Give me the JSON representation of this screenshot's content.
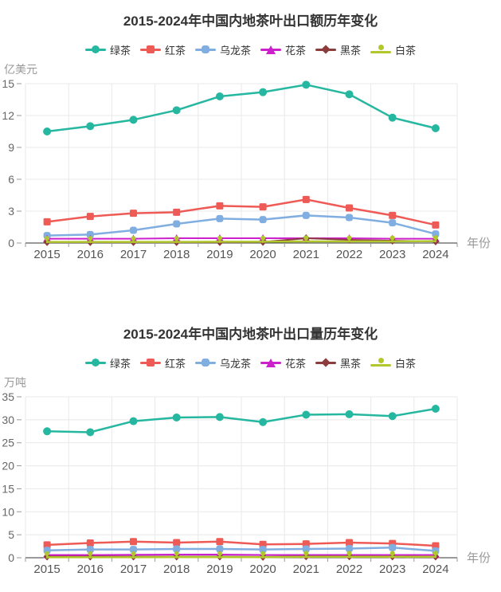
{
  "colors": {
    "title": "#333333",
    "y_tick_label": "#666666",
    "x_tick_label": "#555555",
    "axis_name": "#999999",
    "grid": "#e8e8e8",
    "axis_line": "#333333",
    "tick": "#999999"
  },
  "chart_data": [
    {
      "type": "line",
      "title": "2015-2024年中国内地茶叶出口额历年变化",
      "y_axis_name": "亿美元",
      "x_axis_name": "年份",
      "ylim": [
        0,
        15
      ],
      "y_ticks": [
        0,
        3,
        6,
        9,
        12,
        15
      ],
      "grid": true,
      "legend_position": "top",
      "categories": [
        "2015",
        "2016",
        "2017",
        "2018",
        "2019",
        "2020",
        "2021",
        "2022",
        "2023",
        "2024"
      ],
      "series": [
        {
          "name": "绿茶",
          "color": "#26b7a0",
          "symbol": "circle",
          "values": [
            10.5,
            11.0,
            11.6,
            12.5,
            13.8,
            14.2,
            14.9,
            14.0,
            11.8,
            10.8
          ]
        },
        {
          "name": "红茶",
          "color": "#ee5a55",
          "symbol": "square",
          "values": [
            2.0,
            2.5,
            2.8,
            2.9,
            3.5,
            3.4,
            4.1,
            3.3,
            2.6,
            1.7
          ]
        },
        {
          "name": "乌龙茶",
          "color": "#80aee1",
          "symbol": "rounded-square",
          "values": [
            0.7,
            0.8,
            1.2,
            1.8,
            2.3,
            2.2,
            2.6,
            2.4,
            1.9,
            0.85
          ]
        },
        {
          "name": "花茶",
          "color": "#cc20cc",
          "symbol": "triangle",
          "values": [
            0.4,
            0.4,
            0.4,
            0.45,
            0.45,
            0.45,
            0.45,
            0.45,
            0.4,
            0.4
          ]
        },
        {
          "name": "黑茶",
          "color": "#8c3c3c",
          "symbol": "diamond",
          "values": [
            0.08,
            0.08,
            0.08,
            0.08,
            0.08,
            0.1,
            0.45,
            0.3,
            0.22,
            0.15
          ]
        },
        {
          "name": "白茶",
          "color": "#b2c72e",
          "symbol": "pin",
          "values": [
            0.1,
            0.1,
            0.1,
            0.1,
            0.12,
            0.12,
            0.15,
            0.15,
            0.15,
            0.18
          ]
        }
      ]
    },
    {
      "type": "line",
      "title": "2015-2024年中国内地茶叶出口量历年变化",
      "y_axis_name": "万吨",
      "x_axis_name": "年份",
      "ylim": [
        0,
        35
      ],
      "y_ticks": [
        0,
        5,
        10,
        15,
        20,
        25,
        30,
        35
      ],
      "grid": true,
      "legend_position": "top",
      "categories": [
        "2015",
        "2016",
        "2017",
        "2018",
        "2019",
        "2020",
        "2021",
        "2022",
        "2023",
        "2024"
      ],
      "series": [
        {
          "name": "绿茶",
          "color": "#26b7a0",
          "symbol": "circle",
          "values": [
            27.5,
            27.3,
            29.7,
            30.5,
            30.6,
            29.5,
            31.1,
            31.2,
            30.8,
            32.4
          ]
        },
        {
          "name": "红茶",
          "color": "#ee5a55",
          "symbol": "square",
          "values": [
            2.8,
            3.2,
            3.5,
            3.3,
            3.5,
            2.9,
            3.0,
            3.3,
            3.1,
            2.6
          ]
        },
        {
          "name": "乌龙茶",
          "color": "#80aee1",
          "symbol": "rounded-square",
          "values": [
            1.6,
            1.8,
            1.8,
            1.9,
            1.9,
            1.8,
            1.9,
            2.0,
            2.2,
            1.5
          ]
        },
        {
          "name": "花茶",
          "color": "#cc20cc",
          "symbol": "triangle",
          "values": [
            0.6,
            0.6,
            0.65,
            0.7,
            0.7,
            0.6,
            0.6,
            0.6,
            0.6,
            0.6
          ]
        },
        {
          "name": "黑茶",
          "color": "#8c3c3c",
          "symbol": "diamond",
          "values": [
            0.25,
            0.25,
            0.25,
            0.25,
            0.25,
            0.2,
            0.3,
            0.3,
            0.28,
            0.25
          ]
        },
        {
          "name": "白茶",
          "color": "#b2c72e",
          "symbol": "pin",
          "values": [
            0.1,
            0.1,
            0.1,
            0.12,
            0.12,
            0.12,
            0.2,
            0.2,
            0.2,
            0.22
          ]
        }
      ]
    }
  ]
}
